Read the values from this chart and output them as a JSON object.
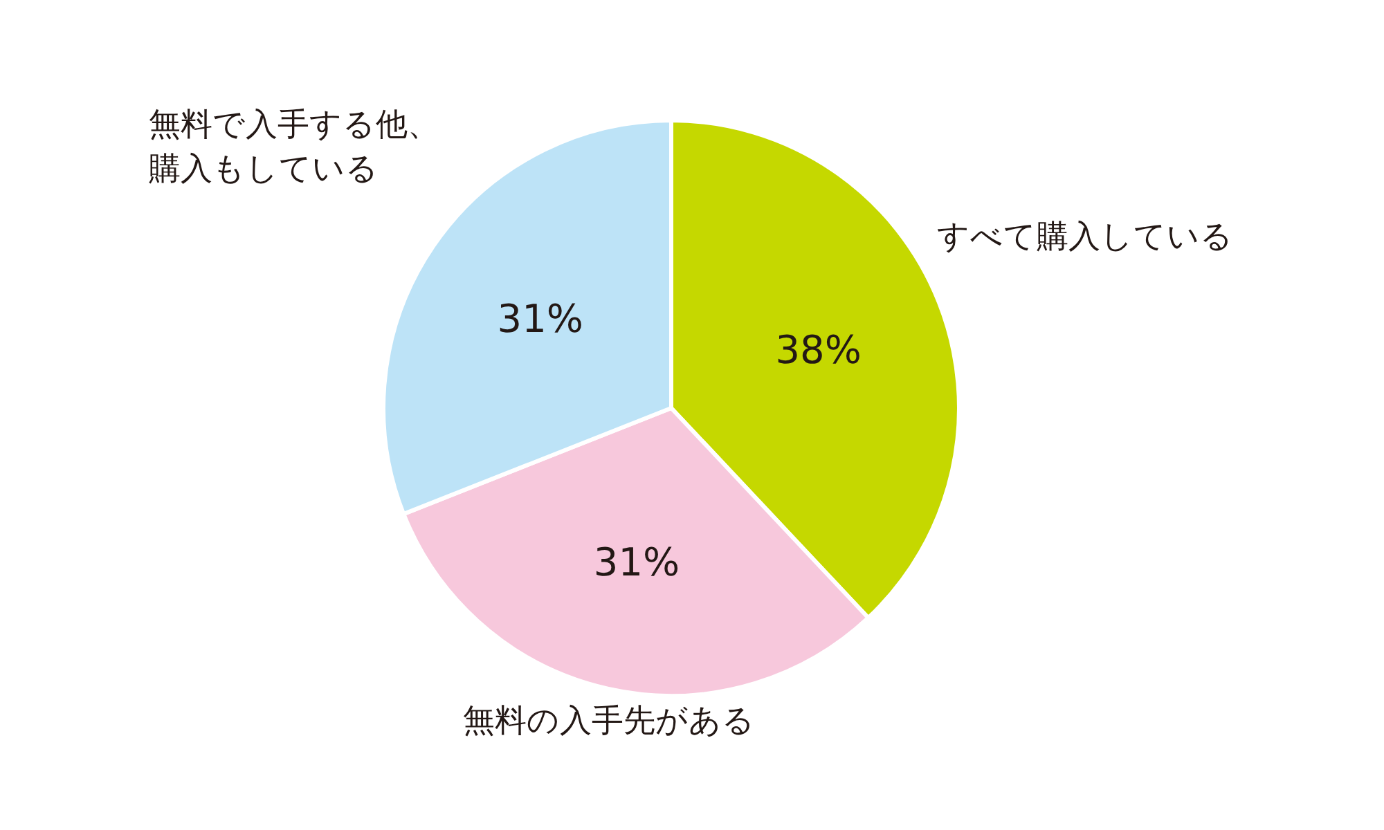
{
  "chart_data": {
    "type": "pie",
    "categories": [
      "すべて購入している",
      "無料の入手先がある",
      "無料で入手する他、購入もしている"
    ],
    "values": [
      38,
      31,
      31
    ],
    "colors": [
      "#c5d800",
      "#f7c8dc",
      "#bde3f7"
    ],
    "value_labels": [
      "38%",
      "31%",
      "31%"
    ]
  }
}
